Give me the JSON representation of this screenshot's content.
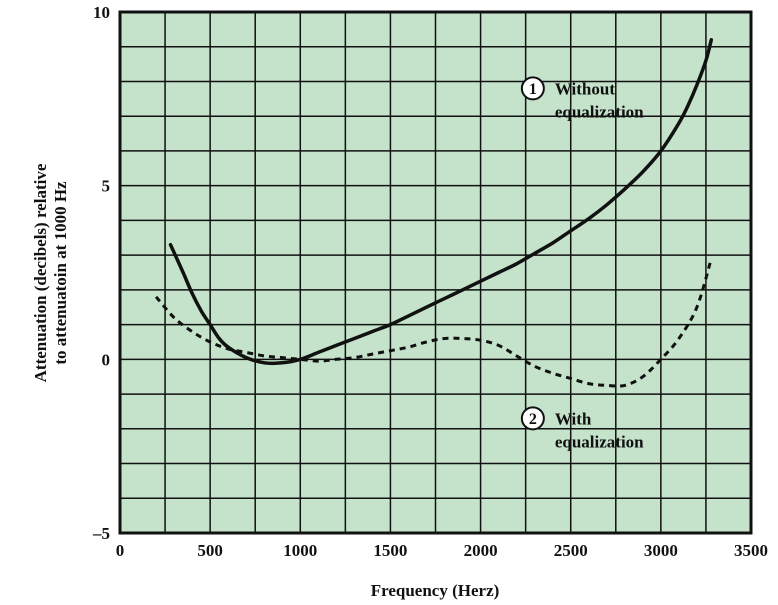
{
  "chart_data": {
    "type": "line",
    "title": "",
    "xlabel": "Frequency (Herz)",
    "ylabel_lines": [
      "Attenuation (decibels) relative",
      "to attenuatoin at 1000 Hz"
    ],
    "xlim": [
      0,
      3500
    ],
    "ylim": [
      -5,
      10
    ],
    "x_ticks": [
      0,
      500,
      1000,
      1500,
      2000,
      2500,
      3000,
      3500
    ],
    "y_ticks": [
      -5,
      0,
      5,
      10
    ],
    "y_tick_labels": [
      "–5",
      "0",
      "5",
      "10"
    ],
    "grid": true,
    "background_color": "#c4e3ca",
    "line_color": "#111111",
    "series": [
      {
        "id": "without",
        "style": "solid",
        "points": [
          [
            280,
            3.3
          ],
          [
            350,
            2.5
          ],
          [
            400,
            1.9
          ],
          [
            450,
            1.4
          ],
          [
            500,
            1.0
          ],
          [
            550,
            0.6
          ],
          [
            600,
            0.35
          ],
          [
            700,
            0.05
          ],
          [
            800,
            -0.1
          ],
          [
            900,
            -0.1
          ],
          [
            1000,
            0.0
          ],
          [
            1100,
            0.2
          ],
          [
            1200,
            0.4
          ],
          [
            1300,
            0.6
          ],
          [
            1400,
            0.8
          ],
          [
            1500,
            1.0
          ],
          [
            1600,
            1.25
          ],
          [
            1700,
            1.5
          ],
          [
            1800,
            1.75
          ],
          [
            1900,
            2.0
          ],
          [
            2000,
            2.25
          ],
          [
            2100,
            2.5
          ],
          [
            2200,
            2.75
          ],
          [
            2300,
            3.05
          ],
          [
            2400,
            3.35
          ],
          [
            2500,
            3.7
          ],
          [
            2600,
            4.05
          ],
          [
            2700,
            4.45
          ],
          [
            2800,
            4.9
          ],
          [
            2900,
            5.4
          ],
          [
            3000,
            6.0
          ],
          [
            3100,
            6.8
          ],
          [
            3150,
            7.3
          ],
          [
            3200,
            7.9
          ],
          [
            3250,
            8.6
          ],
          [
            3280,
            9.2
          ]
        ]
      },
      {
        "id": "with",
        "style": "dashed",
        "points": [
          [
            200,
            1.8
          ],
          [
            300,
            1.2
          ],
          [
            400,
            0.8
          ],
          [
            500,
            0.5
          ],
          [
            600,
            0.3
          ],
          [
            700,
            0.2
          ],
          [
            800,
            0.1
          ],
          [
            900,
            0.05
          ],
          [
            1000,
            0.0
          ],
          [
            1100,
            -0.05
          ],
          [
            1200,
            0.0
          ],
          [
            1300,
            0.05
          ],
          [
            1400,
            0.15
          ],
          [
            1500,
            0.25
          ],
          [
            1600,
            0.35
          ],
          [
            1700,
            0.5
          ],
          [
            1800,
            0.6
          ],
          [
            1900,
            0.6
          ],
          [
            2000,
            0.55
          ],
          [
            2100,
            0.4
          ],
          [
            2200,
            0.1
          ],
          [
            2300,
            -0.2
          ],
          [
            2400,
            -0.4
          ],
          [
            2500,
            -0.55
          ],
          [
            2600,
            -0.7
          ],
          [
            2700,
            -0.75
          ],
          [
            2800,
            -0.75
          ],
          [
            2900,
            -0.5
          ],
          [
            3000,
            0.0
          ],
          [
            3100,
            0.6
          ],
          [
            3200,
            1.5
          ],
          [
            3280,
            2.9
          ]
        ]
      }
    ],
    "annotations": [
      {
        "number": "1",
        "lines": [
          "Without",
          "equalization"
        ],
        "x": 2290,
        "y": 7.8
      },
      {
        "number": "2",
        "lines": [
          "With",
          "equalization"
        ],
        "x": 2290,
        "y": -1.7
      }
    ]
  }
}
